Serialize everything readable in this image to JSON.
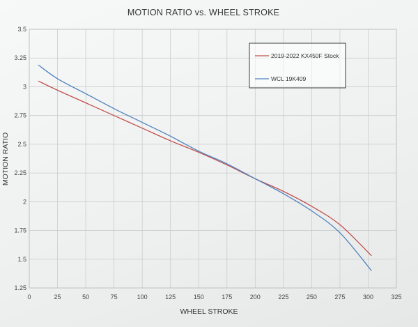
{
  "chart_data": {
    "type": "line",
    "title": "MOTION RATIO vs. WHEEL STROKE",
    "xlabel": "WHEEL STROKE",
    "ylabel": "MOTION RATIO",
    "xlim": [
      0,
      325
    ],
    "ylim": [
      1.25,
      3.5
    ],
    "xticks": [
      "0",
      "25",
      "50",
      "75",
      "100",
      "125",
      "150",
      "175",
      "200",
      "225",
      "250",
      "275",
      "300",
      "325"
    ],
    "yticks": [
      "1.25",
      "1.5",
      "1.75",
      "2",
      "2.25",
      "2.5",
      "2.75",
      "3",
      "3.25",
      "3.5"
    ],
    "grid": true,
    "legend_position": "top-right",
    "series": [
      {
        "name": "2019-2022 KX450F Stock",
        "color": "#c0504d",
        "x": [
          8,
          25,
          50,
          75,
          100,
          125,
          150,
          175,
          200,
          225,
          250,
          275,
          303
        ],
        "y": [
          3.05,
          2.97,
          2.86,
          2.75,
          2.64,
          2.53,
          2.43,
          2.32,
          2.2,
          2.09,
          1.96,
          1.8,
          1.53
        ]
      },
      {
        "name": "WCL 19K409",
        "color": "#4f81bd",
        "x": [
          8,
          25,
          50,
          75,
          100,
          125,
          150,
          175,
          200,
          225,
          250,
          275,
          303
        ],
        "y": [
          3.19,
          3.07,
          2.94,
          2.81,
          2.69,
          2.57,
          2.44,
          2.33,
          2.2,
          2.07,
          1.92,
          1.73,
          1.4
        ]
      }
    ]
  }
}
